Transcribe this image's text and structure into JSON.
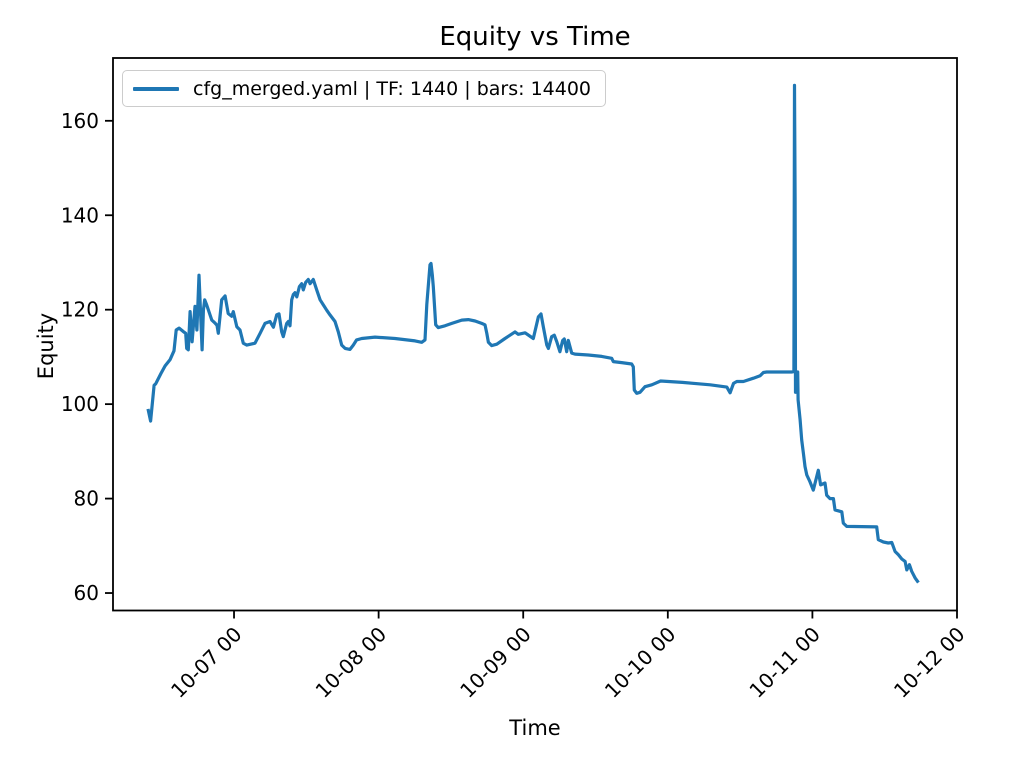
{
  "figure": {
    "title": "Equity vs Time",
    "xlabel": "Time",
    "ylabel": "Equity",
    "background": "#ffffff"
  },
  "legend": {
    "label": "cfg_merged.yaml | TF: 1440 | bars: 14400",
    "line_color": "#1f77b4",
    "position": "upper left"
  },
  "chart_data": {
    "type": "line",
    "title": "Equity vs Time",
    "xlabel": "Time",
    "ylabel": "Equity",
    "grid": false,
    "legend_position": "upper left",
    "x_unit": "days after 10-06 00:00 (tick labels are MM-DD HH)",
    "xlim": [
      0.163,
      6.0
    ],
    "ylim": [
      56.3,
      173.3
    ],
    "x_ticks": {
      "positions": [
        1,
        2,
        3,
        4,
        5,
        6
      ],
      "labels": [
        "10-07 00",
        "10-08 00",
        "10-09 00",
        "10-10 00",
        "10-11 00",
        "10-12 00"
      ]
    },
    "y_ticks": {
      "positions": [
        60,
        80,
        100,
        120,
        140,
        160
      ],
      "labels": [
        "60",
        "80",
        "100",
        "120",
        "140",
        "160"
      ]
    },
    "series": [
      {
        "name": "cfg_merged.yaml | TF: 1440 | bars: 14400",
        "color": "#1f77b4",
        "line_width": 3.2,
        "points": [
          [
            0.405,
            99.0
          ],
          [
            0.423,
            96.4
          ],
          [
            0.447,
            104.0
          ],
          [
            0.458,
            104.3
          ],
          [
            0.495,
            106.5
          ],
          [
            0.523,
            108.1
          ],
          [
            0.557,
            109.4
          ],
          [
            0.585,
            111.3
          ],
          [
            0.6,
            115.7
          ],
          [
            0.62,
            116.1
          ],
          [
            0.648,
            115.4
          ],
          [
            0.666,
            115.0
          ],
          [
            0.673,
            111.8
          ],
          [
            0.684,
            111.5
          ],
          [
            0.696,
            119.6
          ],
          [
            0.71,
            113.2
          ],
          [
            0.73,
            120.7
          ],
          [
            0.743,
            115.7
          ],
          [
            0.758,
            127.3
          ],
          [
            0.779,
            111.5
          ],
          [
            0.788,
            119.9
          ],
          [
            0.797,
            122.1
          ],
          [
            0.811,
            121.0
          ],
          [
            0.846,
            117.8
          ],
          [
            0.868,
            117.2
          ],
          [
            0.882,
            116.7
          ],
          [
            0.891,
            115.0
          ],
          [
            0.915,
            122.1
          ],
          [
            0.938,
            122.9
          ],
          [
            0.96,
            119.2
          ],
          [
            0.984,
            118.6
          ],
          [
            0.995,
            119.6
          ],
          [
            1.019,
            116.4
          ],
          [
            1.041,
            115.7
          ],
          [
            1.064,
            112.9
          ],
          [
            1.088,
            112.5
          ],
          [
            1.145,
            112.9
          ],
          [
            1.18,
            115.0
          ],
          [
            1.214,
            117.1
          ],
          [
            1.249,
            117.5
          ],
          [
            1.272,
            116.3
          ],
          [
            1.295,
            118.9
          ],
          [
            1.311,
            119.1
          ],
          [
            1.33,
            115.3
          ],
          [
            1.341,
            114.3
          ],
          [
            1.364,
            117.1
          ],
          [
            1.376,
            117.5
          ],
          [
            1.387,
            116.6
          ],
          [
            1.399,
            122.1
          ],
          [
            1.41,
            123.2
          ],
          [
            1.422,
            123.6
          ],
          [
            1.434,
            122.7
          ],
          [
            1.452,
            124.9
          ],
          [
            1.468,
            125.5
          ],
          [
            1.479,
            124.2
          ],
          [
            1.496,
            125.8
          ],
          [
            1.514,
            126.4
          ],
          [
            1.526,
            125.5
          ],
          [
            1.548,
            126.4
          ],
          [
            1.572,
            124.2
          ],
          [
            1.595,
            122.1
          ],
          [
            1.618,
            121.0
          ],
          [
            1.641,
            119.9
          ],
          [
            1.664,
            118.9
          ],
          [
            1.698,
            117.5
          ],
          [
            1.721,
            115.3
          ],
          [
            1.745,
            112.5
          ],
          [
            1.768,
            111.8
          ],
          [
            1.802,
            111.6
          ],
          [
            1.825,
            112.5
          ],
          [
            1.848,
            113.6
          ],
          [
            1.883,
            113.9
          ],
          [
            1.975,
            114.2
          ],
          [
            2.113,
            113.9
          ],
          [
            2.252,
            113.4
          ],
          [
            2.298,
            113.1
          ],
          [
            2.321,
            113.6
          ],
          [
            2.333,
            121.1
          ],
          [
            2.355,
            129.5
          ],
          [
            2.362,
            129.8
          ],
          [
            2.371,
            127.4
          ],
          [
            2.378,
            124.9
          ],
          [
            2.395,
            116.8
          ],
          [
            2.413,
            116.2
          ],
          [
            2.459,
            116.6
          ],
          [
            2.506,
            117.1
          ],
          [
            2.575,
            117.8
          ],
          [
            2.62,
            117.9
          ],
          [
            2.667,
            117.6
          ],
          [
            2.713,
            117.1
          ],
          [
            2.736,
            116.8
          ],
          [
            2.748,
            115.0
          ],
          [
            2.759,
            113.1
          ],
          [
            2.782,
            112.4
          ],
          [
            2.817,
            112.7
          ],
          [
            2.874,
            113.9
          ],
          [
            2.943,
            115.3
          ],
          [
            2.966,
            114.8
          ],
          [
            3.013,
            115.1
          ],
          [
            3.07,
            113.9
          ],
          [
            3.105,
            118.5
          ],
          [
            3.123,
            119.1
          ],
          [
            3.139,
            116.4
          ],
          [
            3.163,
            112.5
          ],
          [
            3.174,
            111.8
          ],
          [
            3.197,
            114.3
          ],
          [
            3.215,
            114.6
          ],
          [
            3.232,
            113.2
          ],
          [
            3.254,
            111.1
          ],
          [
            3.273,
            113.5
          ],
          [
            3.284,
            113.8
          ],
          [
            3.301,
            111.1
          ],
          [
            3.312,
            113.5
          ],
          [
            3.335,
            110.8
          ],
          [
            3.358,
            110.6
          ],
          [
            3.45,
            110.4
          ],
          [
            3.543,
            110.1
          ],
          [
            3.612,
            109.7
          ],
          [
            3.623,
            109.0
          ],
          [
            3.681,
            108.8
          ],
          [
            3.75,
            108.5
          ],
          [
            3.761,
            107.9
          ],
          [
            3.768,
            103.0
          ],
          [
            3.785,
            102.3
          ],
          [
            3.808,
            102.5
          ],
          [
            3.842,
            103.7
          ],
          [
            3.889,
            104.1
          ],
          [
            3.95,
            104.9
          ],
          [
            4.1,
            104.6
          ],
          [
            4.293,
            104.1
          ],
          [
            4.408,
            103.6
          ],
          [
            4.431,
            102.4
          ],
          [
            4.454,
            104.4
          ],
          [
            4.477,
            104.8
          ],
          [
            4.523,
            104.8
          ],
          [
            4.592,
            105.5
          ],
          [
            4.638,
            106.0
          ],
          [
            4.661,
            106.7
          ],
          [
            4.684,
            106.8
          ],
          [
            4.857,
            106.8
          ],
          [
            4.872,
            106.9
          ],
          [
            4.876,
            167.5
          ],
          [
            4.88,
            143.5
          ],
          [
            4.883,
            102.5
          ],
          [
            4.887,
            106.8
          ],
          [
            4.898,
            106.8
          ],
          [
            4.901,
            100.9
          ],
          [
            4.915,
            96.7
          ],
          [
            4.926,
            92.4
          ],
          [
            4.938,
            89.6
          ],
          [
            4.949,
            86.8
          ],
          [
            4.961,
            85.0
          ],
          [
            4.983,
            83.6
          ],
          [
            5.006,
            81.8
          ],
          [
            5.041,
            86.0
          ],
          [
            5.057,
            82.9
          ],
          [
            5.087,
            83.3
          ],
          [
            5.099,
            80.7
          ],
          [
            5.122,
            80.0
          ],
          [
            5.145,
            80.0
          ],
          [
            5.156,
            77.6
          ],
          [
            5.203,
            77.2
          ],
          [
            5.214,
            74.8
          ],
          [
            5.237,
            74.1
          ],
          [
            5.445,
            74.0
          ],
          [
            5.456,
            71.3
          ],
          [
            5.491,
            70.8
          ],
          [
            5.525,
            70.6
          ],
          [
            5.549,
            70.7
          ],
          [
            5.572,
            68.8
          ],
          [
            5.595,
            68.1
          ],
          [
            5.618,
            67.2
          ],
          [
            5.641,
            66.7
          ],
          [
            5.653,
            64.9
          ],
          [
            5.671,
            66.0
          ],
          [
            5.687,
            64.6
          ],
          [
            5.71,
            63.2
          ],
          [
            5.733,
            62.2
          ]
        ]
      }
    ]
  }
}
